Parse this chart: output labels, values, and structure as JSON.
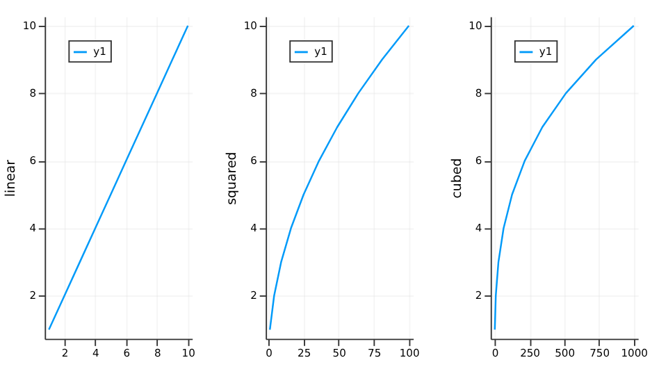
{
  "chart_data": [
    {
      "type": "line",
      "ylabel": "linear",
      "x": [
        1,
        2,
        3,
        4,
        5,
        6,
        7,
        8,
        9,
        10
      ],
      "series": [
        {
          "name": "y1",
          "color": "#009af9",
          "values": [
            1,
            2,
            3,
            4,
            5,
            6,
            7,
            8,
            9,
            10
          ]
        }
      ],
      "xlim": [
        0.73,
        10.27
      ],
      "xticks": [
        2,
        4,
        6,
        8,
        10
      ],
      "ylim": [
        0.73,
        10.27
      ],
      "yticks": [
        2,
        4,
        6,
        8,
        10
      ],
      "grid": true,
      "legend": "top left"
    },
    {
      "type": "line",
      "ylabel": "squared",
      "x": [
        1,
        4,
        9,
        16,
        25,
        36,
        49,
        64,
        81,
        100
      ],
      "series": [
        {
          "name": "y1",
          "color": "#009af9",
          "values": [
            1,
            2,
            3,
            4,
            5,
            6,
            7,
            8,
            9,
            10
          ]
        }
      ],
      "xlim": [
        -1.97,
        102.97
      ],
      "xticks": [
        0,
        25,
        50,
        75,
        100
      ],
      "ylim": [
        0.73,
        10.27
      ],
      "yticks": [
        2,
        4,
        6,
        8,
        10
      ],
      "grid": true,
      "legend": "top left"
    },
    {
      "type": "line",
      "ylabel": "cubed",
      "x": [
        1,
        8,
        27,
        64,
        125,
        216,
        343,
        512,
        729,
        1000
      ],
      "series": [
        {
          "name": "y1",
          "color": "#009af9",
          "values": [
            1,
            2,
            3,
            4,
            5,
            6,
            7,
            8,
            9,
            10
          ]
        }
      ],
      "xlim": [
        -28.97,
        1029.97
      ],
      "xticks": [
        0,
        250,
        500,
        750,
        1000
      ],
      "ylim": [
        0.73,
        10.27
      ],
      "yticks": [
        2,
        4,
        6,
        8,
        10
      ],
      "grid": true,
      "legend": "top left"
    }
  ]
}
